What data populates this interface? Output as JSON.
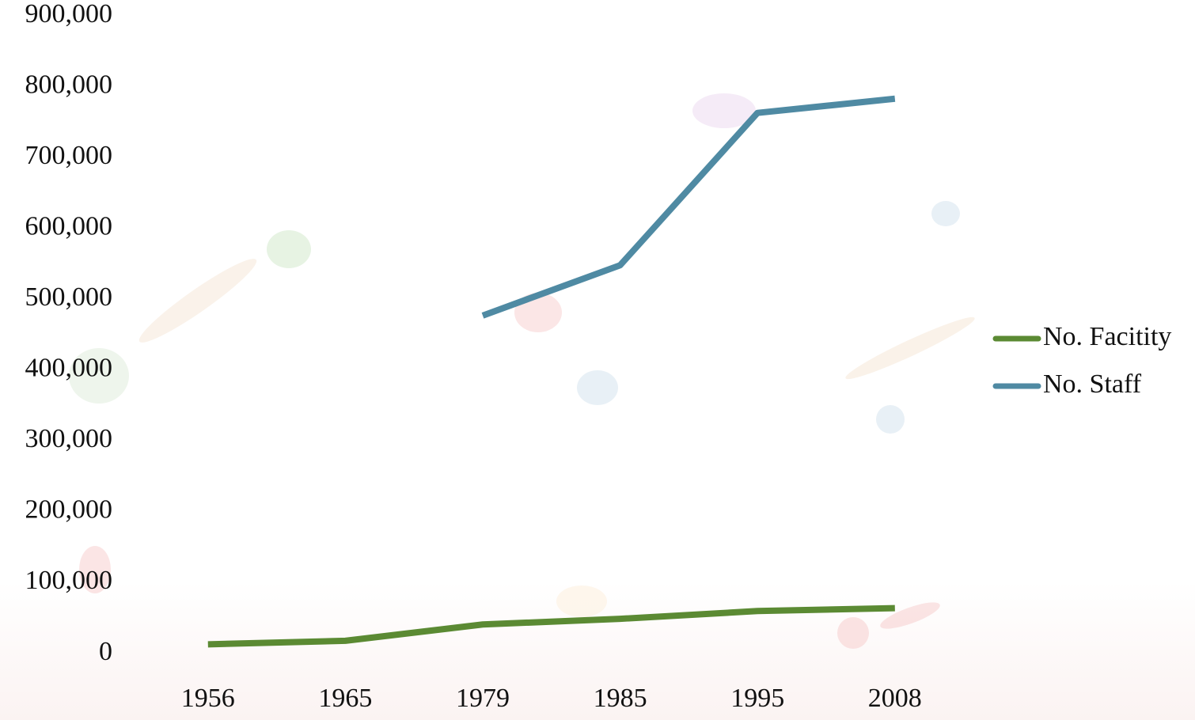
{
  "chart_data": {
    "type": "line",
    "categories": [
      "1956",
      "1965",
      "1979",
      "1985",
      "1995",
      "2008"
    ],
    "series": [
      {
        "name": "No. Facitity",
        "color": "#5b8a33",
        "values": [
          13000,
          18000,
          41000,
          49000,
          60000,
          64000
        ]
      },
      {
        "name": "No. Staff",
        "color": "#4f8aa3",
        "values": [
          null,
          null,
          477000,
          548000,
          763000,
          783000
        ]
      }
    ],
    "ylim": [
      0,
      900000
    ],
    "yticks": [
      0,
      {
        "value": 100000,
        "label": "100,000"
      },
      {
        "value": 200000,
        "label": "200,000"
      },
      {
        "value": 300000,
        "label": "300,000"
      },
      {
        "value": 400000,
        "label": "400,000"
      },
      {
        "value": 500000,
        "label": "500,000"
      },
      {
        "value": 600000,
        "label": "600,000"
      },
      {
        "value": 700000,
        "label": "700,000"
      },
      {
        "value": 800000,
        "label": "800,000"
      },
      {
        "value": 900000,
        "label": "900,000"
      }
    ],
    "legend": "right"
  }
}
